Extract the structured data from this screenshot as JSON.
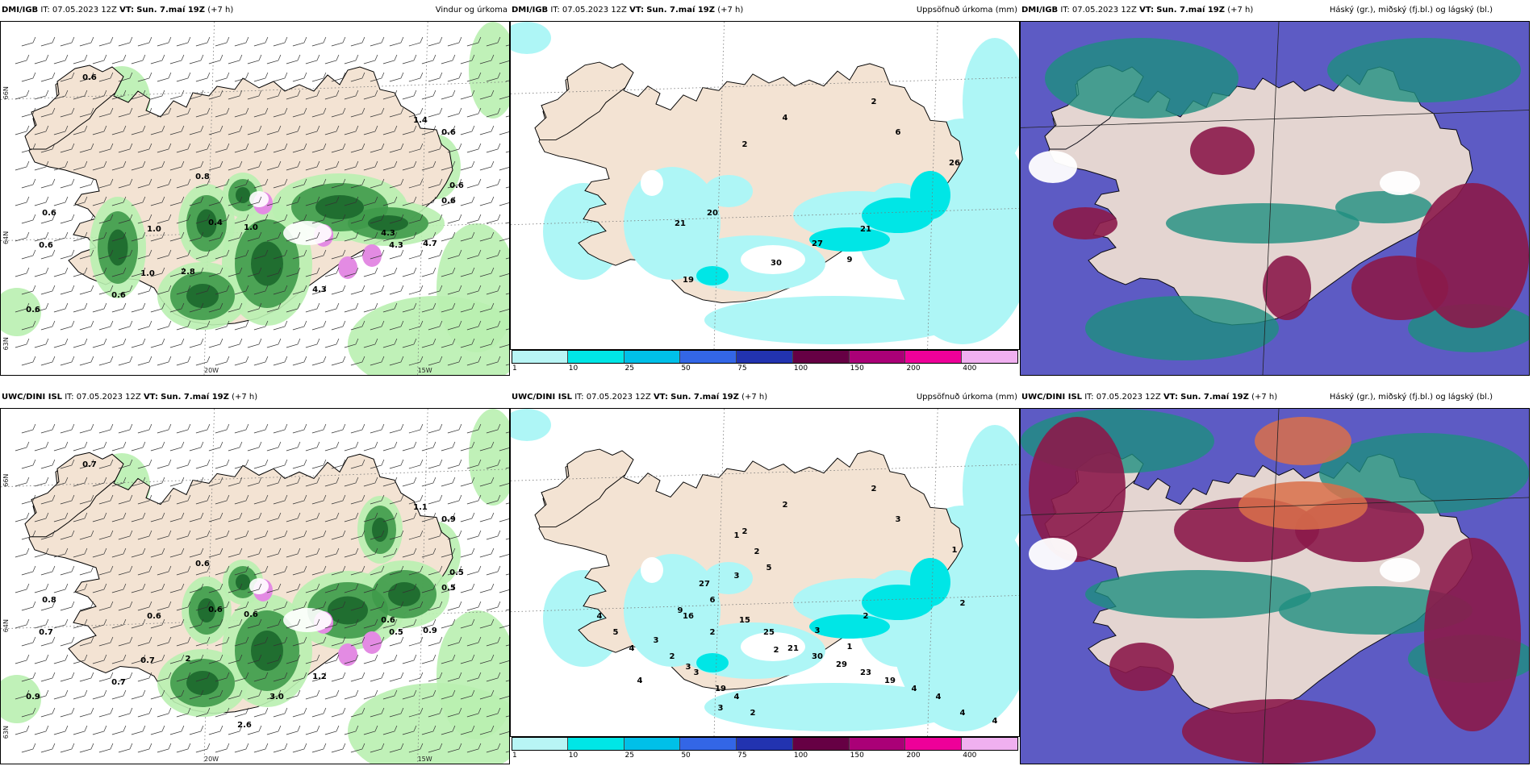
{
  "panels": [
    {
      "model": "DMI/IGB",
      "it": "IT: 07.05.2023 12Z",
      "vt_label": "VT:",
      "vt": "Sun. 7.maí 19Z",
      "lead": "(+7 h)",
      "title": "Vindur og úrkoma",
      "type": "wind"
    },
    {
      "model": "DMI/IGB",
      "it": "IT: 07.05.2023 12Z",
      "vt_label": "VT:",
      "vt": "Sun. 7.maí 19Z",
      "lead": "(+7 h)",
      "title": "Uppsöfnuð úrkoma (mm)",
      "type": "accum"
    },
    {
      "model": "DMI/IGB",
      "it": "IT: 07.05.2023 12Z",
      "vt_label": "VT:",
      "vt": "Sun. 7.maí 19Z",
      "lead": "(+7 h)",
      "title": "Háský (gr.), miðský (fj.bl.) og lágský (bl.)",
      "type": "cloud"
    },
    {
      "model": "UWC/DINI ISL",
      "it": "IT: 07.05.2023 12Z",
      "vt_label": "VT:",
      "vt": "Sun. 7.maí 19Z",
      "lead": "(+7 h)",
      "title": "",
      "type": "wind"
    },
    {
      "model": "UWC/DINI ISL",
      "it": "IT: 07.05.2023 12Z",
      "vt_label": "VT:",
      "vt": "Sun. 7.maí 19Z",
      "lead": "(+7 h)",
      "title": "Uppsöfnuð úrkoma (mm)",
      "type": "accum"
    },
    {
      "model": "UWC/DINI ISL",
      "it": "IT: 07.05.2023 12Z",
      "vt_label": "VT:",
      "vt": "Sun. 7.maí 19Z",
      "lead": "(+7 h)",
      "title": "Háský (gr.), miðský (fj.bl.) og lágský (bl.)",
      "type": "cloud"
    }
  ],
  "colorbar": {
    "ticks": [
      "1",
      "10",
      "25",
      "50",
      "75",
      "100",
      "150",
      "200",
      "400"
    ],
    "colors": [
      "#b8f5f5",
      "#00e6e6",
      "#00c0e8",
      "#3366e6",
      "#2233b0",
      "#660044",
      "#aa0077",
      "#ee0099",
      "#f0b0f0"
    ]
  },
  "axes": {
    "lat_66": "66N",
    "lat_64": "64N",
    "lat_63": "63N",
    "lon_20": "20W",
    "lon_15": "15W"
  },
  "wind_labels_top": [
    "0.6",
    "0.8",
    "1.4",
    "0.6",
    "0.6",
    "0.6",
    "0.6",
    "0.6",
    "1.0",
    "0.6",
    "1.0",
    "0.6",
    "2.8",
    "0.4",
    "1.0",
    "4.3",
    "4.7",
    "4.3",
    "4.3"
  ],
  "wind_labels_bottom": [
    "0.7",
    "0.6",
    "1.1",
    "0.9",
    "0.5",
    "0.5",
    "0.8",
    "0.7",
    "0.6",
    "0.9",
    "0.7",
    "0.7",
    "2",
    "0.6",
    "0.6",
    "0.5",
    "0.9",
    "0.6",
    "1.2",
    "2.6",
    "3.0"
  ],
  "accum_labels_top": [
    "2",
    "4",
    "2",
    "6",
    "21",
    "20",
    "30",
    "19",
    "27",
    "21",
    "9",
    "26"
  ],
  "accum_labels_bottom": [
    "2",
    "2",
    "2",
    "3",
    "9",
    "6",
    "2",
    "3",
    "3",
    "2",
    "1",
    "1",
    "2",
    "3",
    "4",
    "3",
    "1",
    "2",
    "5",
    "3",
    "27",
    "16",
    "2",
    "15",
    "25",
    "21",
    "30",
    "29",
    "23",
    "19",
    "4",
    "4",
    "4",
    "4",
    "3",
    "2",
    "3",
    "19",
    "4",
    "2",
    "4",
    "5",
    "4"
  ],
  "map_colors": {
    "land": "#f3e3d3",
    "sea": "#ffffff",
    "green_light": "#b9f0b0",
    "green_dark": "#1e6b2e",
    "pink": "#e38be3",
    "cloud_blue": "#5d5bc4",
    "cloud_green": "#1e8e80",
    "cloud_red": "#8b1a4a",
    "cyan": "#aef6f6"
  }
}
